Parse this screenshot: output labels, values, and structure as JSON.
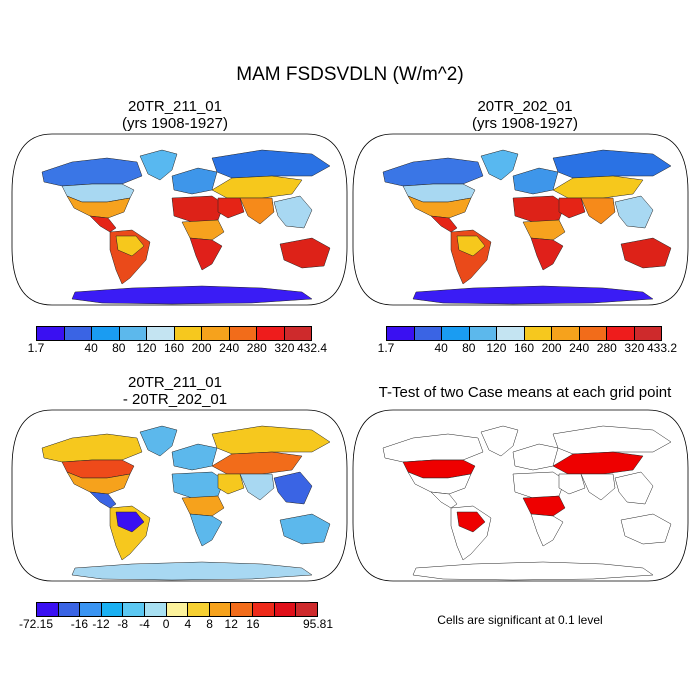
{
  "figure": {
    "title": "MAM FSDSVDLN (W/m^2)",
    "footnote": "Cells are significant at 0.1 level"
  },
  "panels": [
    {
      "id": "case1",
      "title_line1": "20TR_211_01",
      "title_line2": "(yrs 1908-1927)",
      "field": "FSDSVDLN mean, case 20TR_211_01",
      "regions": {
        "antarctica": "#3a1cf5",
        "greenland": "#58b8f0",
        "north_america_high": "#3a76e6",
        "north_america_mid": "#a8d8f2",
        "north_america_low": "#f6a21e",
        "central_america": "#e52416",
        "south_america": "#ea4a1a",
        "amazon": "#f6c81c",
        "europe": "#3e96ea",
        "siberia": "#2a72e4",
        "central_asia": "#f6c81c",
        "sahara": "#dd2218",
        "central_africa": "#f6a21e",
        "southern_africa": "#e0201a",
        "middle_east": "#e52416",
        "south_asia": "#f68a1a",
        "southeast_asia": "#a8d8f2",
        "australia": "#dd2218"
      },
      "colorbar": {
        "colors": [
          "#3a10f2",
          "#3a64e4",
          "#1a9cf2",
          "#5cb8ec",
          "#c4e4f2",
          "#f6c81e",
          "#f6a21c",
          "#f26c1a",
          "#ee1c1c",
          "#ce2a2c"
        ],
        "labels": [
          "1.7",
          "40",
          "80",
          "120",
          "160",
          "200",
          "240",
          "280",
          "320",
          "432.4"
        ]
      }
    },
    {
      "id": "case2",
      "title_line1": "20TR_202_01",
      "title_line2": "(yrs 1908-1927)",
      "field": "FSDSVDLN mean, case 20TR_202_01",
      "regions": {
        "antarctica": "#3a1cf5",
        "greenland": "#58b8f0",
        "north_america_high": "#3a76e6",
        "north_america_mid": "#a8d8f2",
        "north_america_low": "#f6a21e",
        "central_america": "#e52416",
        "south_america": "#ea4a1a",
        "amazon": "#f6c81c",
        "europe": "#3e96ea",
        "siberia": "#2a72e4",
        "central_asia": "#f6c81c",
        "sahara": "#dd2218",
        "central_africa": "#f6a21e",
        "southern_africa": "#e0201a",
        "middle_east": "#e52416",
        "south_asia": "#f68a1a",
        "southeast_asia": "#a8d8f2",
        "australia": "#dd2218"
      },
      "colorbar": {
        "colors": [
          "#3a10f2",
          "#3a64e4",
          "#1a9cf2",
          "#5cb8ec",
          "#c4e4f2",
          "#f6c81e",
          "#f6a21c",
          "#f26c1a",
          "#ee1c1c",
          "#ce2a2c"
        ],
        "labels": [
          "1.7",
          "40",
          "80",
          "120",
          "160",
          "200",
          "240",
          "280",
          "320",
          "433.2"
        ]
      }
    },
    {
      "id": "diff",
      "title_line1": "20TR_211_01",
      "title_line2": "- 20TR_202_01",
      "field": "difference 20TR_211_01 - 20TR_202_01",
      "regions": {
        "antarctica": "#a8d8f2",
        "greenland": "#5cb8ec",
        "north_america_high": "#f6c81e",
        "north_america_mid": "#ee4a1a",
        "north_america_low": "#f6a21c",
        "central_america": "#3a64e4",
        "south_america": "#f6c81e",
        "amazon": "#3a10f2",
        "europe": "#5cb8ec",
        "siberia": "#f6c81e",
        "central_asia": "#f26c1a",
        "sahara": "#5cb8ec",
        "central_africa": "#f6a21c",
        "southern_africa": "#5cb8ec",
        "middle_east": "#f6c81e",
        "south_asia": "#a8d8f2",
        "southeast_asia": "#3a64e4",
        "australia": "#5cb8ec"
      },
      "colorbar": {
        "colors": [
          "#3a10f2",
          "#3a64e4",
          "#3a94f2",
          "#1ab0f2",
          "#5cc8f2",
          "#a8e0f2",
          "#fcf29c",
          "#f6d032",
          "#f6a21c",
          "#f26c1a",
          "#ee2a1a",
          "#e0101a",
          "#ce2a2c"
        ],
        "labels": [
          "-72.15",
          "-16",
          "-12",
          "-8",
          "-4",
          "0",
          "4",
          "8",
          "12",
          "16",
          "95.81"
        ]
      }
    },
    {
      "id": "ttest",
      "title_line1": "T-Test of two Case means at each grid point",
      "field": "significance mask",
      "regions": {
        "antarctica": "#ffffff",
        "greenland": "#ffffff",
        "north_america_high": "#ffffff",
        "north_america_mid": "#ee0000",
        "north_america_low": "#ffffff",
        "central_america": "#ffffff",
        "south_america": "#ffffff",
        "amazon": "#ee0000",
        "europe": "#ffffff",
        "siberia": "#ffffff",
        "central_asia": "#ee0000",
        "sahara": "#ffffff",
        "central_africa": "#ee0000",
        "southern_africa": "#ffffff",
        "middle_east": "#ffffff",
        "south_asia": "#ffffff",
        "southeast_asia": "#ffffff",
        "australia": "#ffffff"
      }
    }
  ]
}
